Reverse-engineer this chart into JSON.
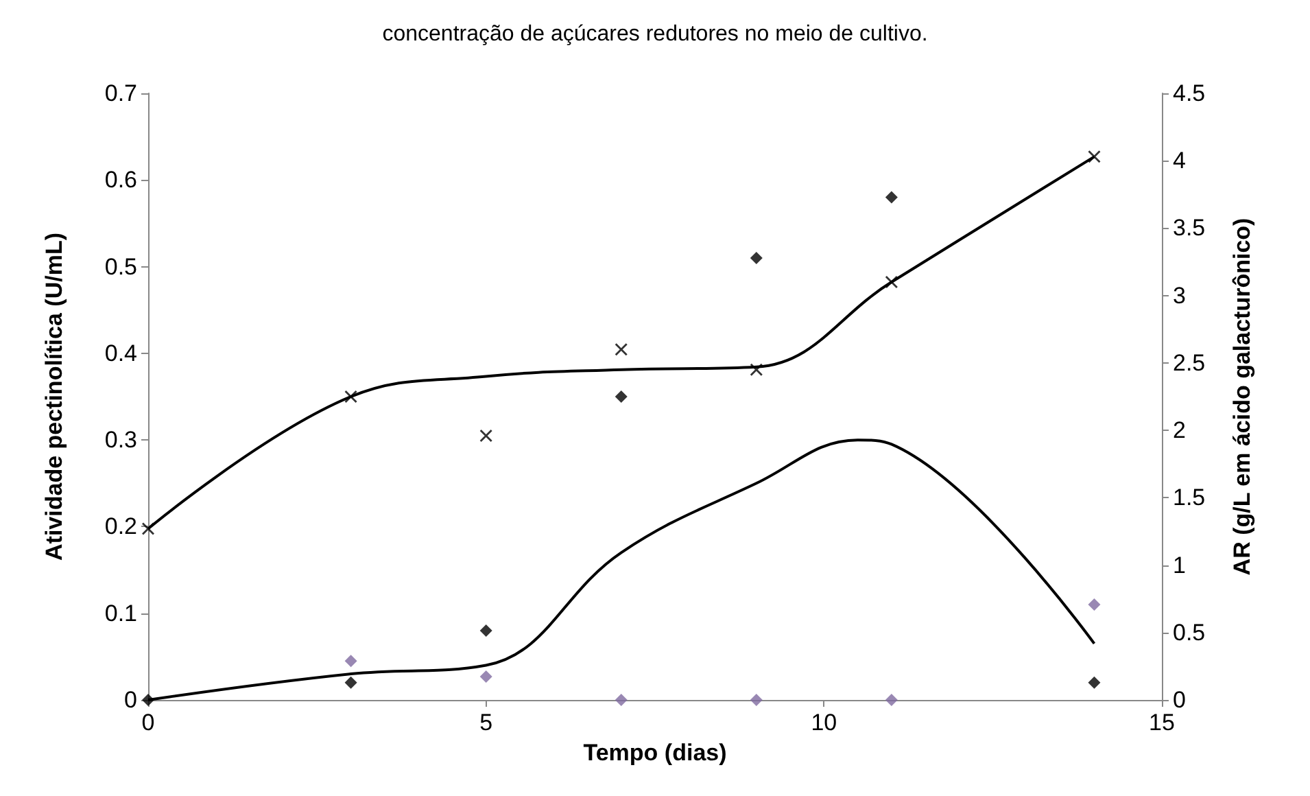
{
  "chart_data": {
    "type": "scatter",
    "title": "concentração de açúcares redutores no meio de cultivo.",
    "xlabel": "Tempo (dias)",
    "ylabel": "Atividade pectinolítica (U/mL)",
    "y2label": "AR (g/L em ácido galacturônico)",
    "xlim": [
      0,
      15
    ],
    "xticks": [
      0,
      5,
      10,
      15
    ],
    "ylim": [
      0,
      0.7
    ],
    "yticks": [
      0,
      0.1,
      0.2,
      0.3,
      0.4,
      0.5,
      0.6,
      0.7
    ],
    "y2lim": [
      0,
      4.5
    ],
    "y2ticks": [
      0,
      0.5,
      1,
      1.5,
      2,
      2.5,
      3,
      3.5,
      4,
      4.5
    ],
    "grid": false,
    "series": [
      {
        "marker": "diamond",
        "color": "#000000",
        "x": [
          0,
          3,
          5,
          7,
          9,
          11,
          14
        ],
        "values": [
          0,
          0.02,
          0.08,
          0.35,
          0.51,
          0.58,
          0.02
        ]
      },
      {
        "marker": "diamond",
        "color": "#7f6aa0",
        "x": [
          3,
          5,
          7,
          9,
          11,
          14
        ],
        "values": [
          0.045,
          0.027,
          0,
          0,
          0,
          0.11
        ]
      },
      {
        "marker": "cross",
        "axis": "y2",
        "color": "#000000",
        "x": [
          0,
          3,
          5,
          7,
          9,
          11,
          14
        ],
        "values": [
          1.27,
          2.25,
          1.96,
          2.6,
          2.45,
          3.1,
          4.03
        ]
      },
      {
        "type": "line",
        "marker": "none",
        "color": "#000000",
        "x": [
          0,
          3,
          5,
          7,
          9,
          10.5,
          11,
          14
        ],
        "values": [
          0,
          0.03,
          0.04,
          0.17,
          0.25,
          0.3,
          0.295,
          0.065
        ]
      },
      {
        "type": "line",
        "marker": "none",
        "axis": "y2",
        "color": "#000000",
        "x": [
          0,
          3,
          5,
          7,
          9,
          11,
          14
        ],
        "values": [
          1.27,
          2.25,
          2.4,
          2.45,
          2.47,
          3.1,
          4.03
        ]
      }
    ]
  }
}
